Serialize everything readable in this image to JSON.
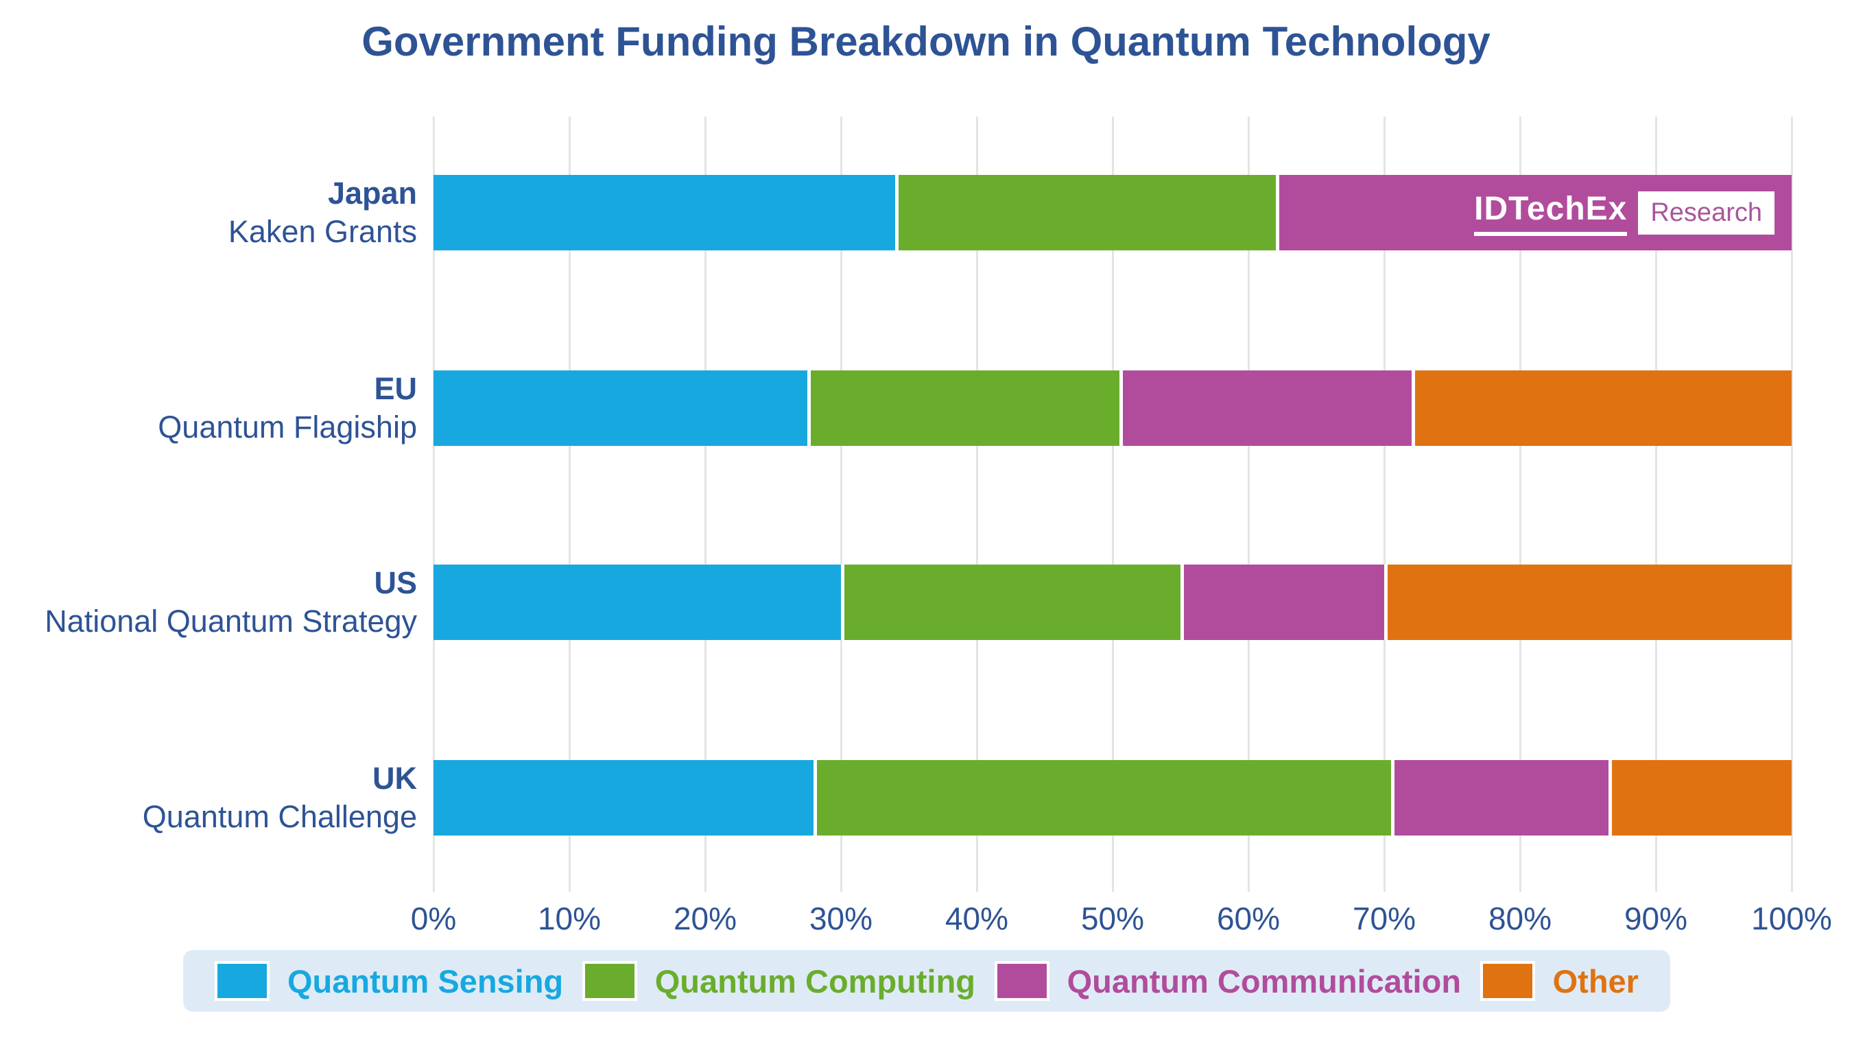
{
  "title": "Government Funding Breakdown in Quantum Technology",
  "logo": {
    "brand": "IDTechEx",
    "suffix": "Research"
  },
  "colors": {
    "sensing": "#18A8E0",
    "computing": "#6AAD2D",
    "communication": "#B14C9D",
    "other": "#E07211",
    "text_navy": "#2E5395",
    "grid": "#E4E4E4",
    "legend_bg": "#DEEBF6",
    "logo_research_text": "#A9569B"
  },
  "chart_data": {
    "type": "bar",
    "orientation": "horizontal",
    "stacked": true,
    "unit": "%",
    "title": "Government Funding Breakdown in Quantum Technology",
    "xlim": [
      0,
      100
    ],
    "grid": true,
    "legend_position": "bottom",
    "x_ticks": [
      "0%",
      "10%",
      "20%",
      "30%",
      "40%",
      "50%",
      "60%",
      "70%",
      "80%",
      "90%",
      "100%"
    ],
    "categories": [
      {
        "label": "Japan",
        "sublabel": "Kaken Grants"
      },
      {
        "label": "EU",
        "sublabel": "Quantum Flagiship"
      },
      {
        "label": "US",
        "sublabel": "National Quantum Strategy"
      },
      {
        "label": "UK",
        "sublabel": "Quantum Challenge"
      }
    ],
    "series": [
      {
        "name": "Quantum Sensing",
        "color": "#18A8E0",
        "values": [
          34,
          27.5,
          30,
          28
        ]
      },
      {
        "name": "Quantum Computing",
        "color": "#6AAD2D",
        "values": [
          28,
          23,
          25,
          42.5
        ]
      },
      {
        "name": "Quantum Communication",
        "color": "#B14C9D",
        "values": [
          38,
          21.5,
          15,
          16
        ]
      },
      {
        "name": "Other",
        "color": "#E07211",
        "values": [
          0,
          28,
          30,
          13.5
        ]
      }
    ]
  }
}
